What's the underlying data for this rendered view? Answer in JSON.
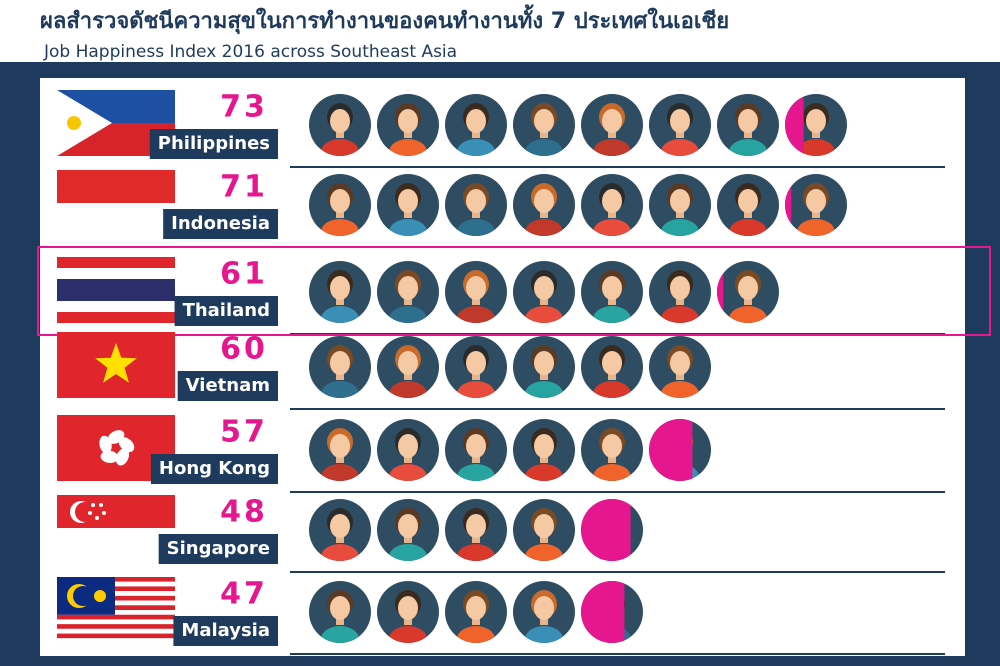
{
  "chart_data": {
    "type": "pictogram",
    "title": "ผลสำรวจดัชนีความสุขในการทำงานของคนทำงานทั้ง  7 ประเทศในเอเชีย",
    "subtitle": "Job Happiness Index 2016 across Southeast Asia",
    "categories": [
      "Philippines",
      "Indonesia",
      "Thailand",
      "Vietnam",
      "Hong Kong",
      "Singapore",
      "Malaysia"
    ],
    "values": [
      73,
      71,
      61,
      60,
      57,
      48,
      47
    ],
    "color": "#2e4d63",
    "partial_color": "#e6168f",
    "highlight_index": 2
  }
}
